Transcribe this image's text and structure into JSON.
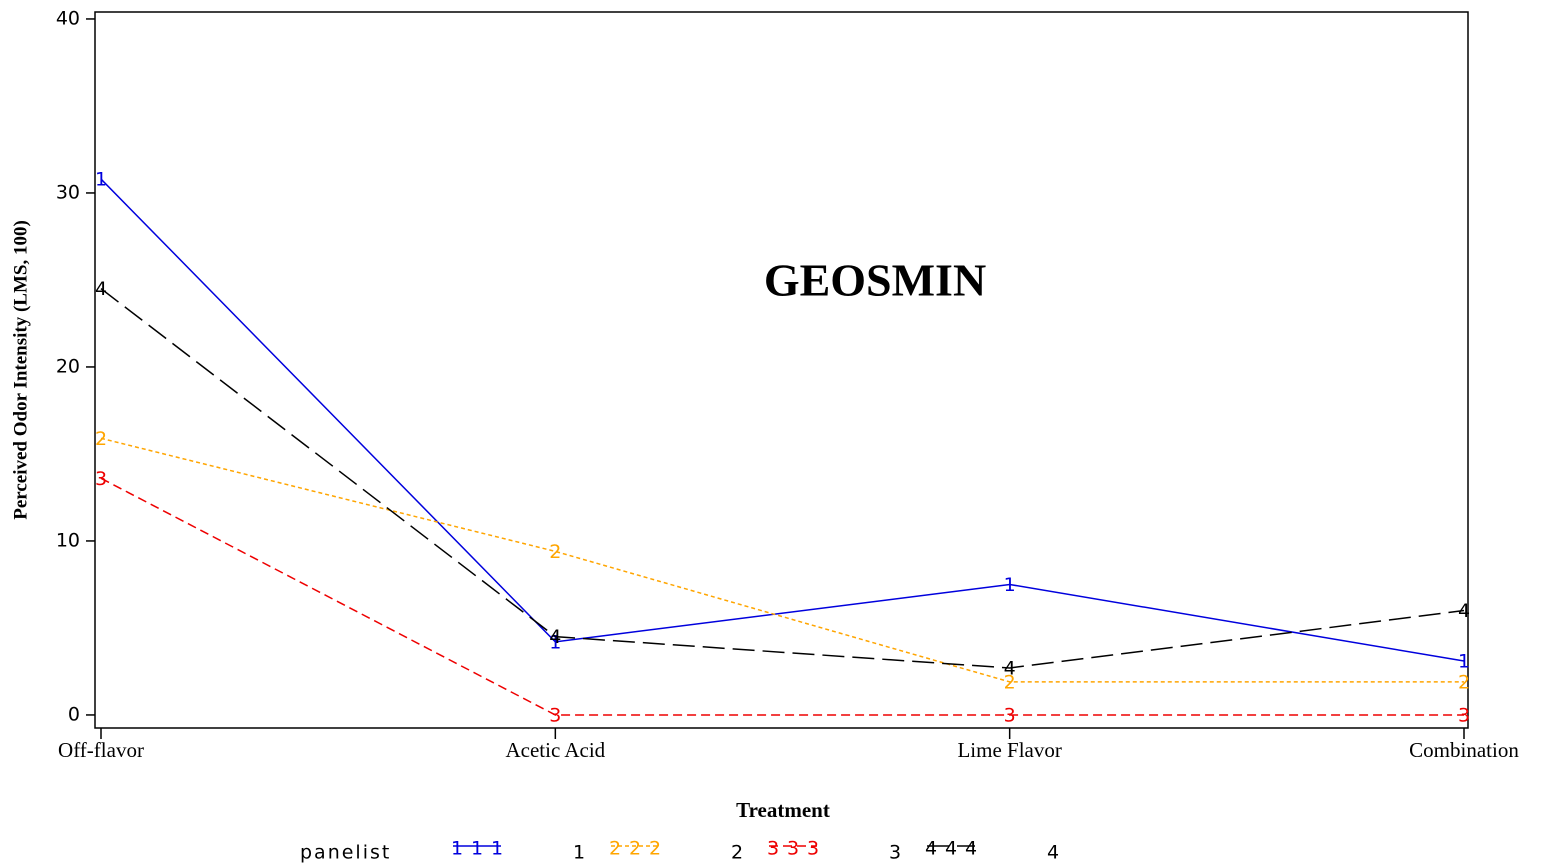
{
  "chart_data": {
    "type": "line",
    "annotation": "GEOSMIN",
    "x_label": "Treatment",
    "y_label": "Perceived Odor Intensity (LMS, 100)",
    "legend_title": "panelist",
    "legend_position": "bottom",
    "categories": [
      "Off-flavor",
      "Acetic Acid",
      "Lime Flavor",
      "Combination"
    ],
    "series": [
      {
        "name": "1",
        "color": "#0000dd",
        "line_style": "solid",
        "values": [
          30.8,
          4.2,
          7.5,
          3.1
        ]
      },
      {
        "name": "2",
        "color": "#ffa500",
        "line_style": "dotted",
        "values": [
          15.9,
          9.4,
          1.9,
          1.9
        ]
      },
      {
        "name": "3",
        "color": "#ee0000",
        "line_style": "dashed",
        "values": [
          13.6,
          0,
          0,
          0
        ]
      },
      {
        "name": "4",
        "color": "#000000",
        "line_style": "longdash",
        "values": [
          24.5,
          4.5,
          2.7,
          6.0
        ]
      }
    ],
    "ylim": [
      -0.75,
      40.4
    ],
    "yticks": [
      0,
      10,
      20,
      30,
      40
    ]
  }
}
